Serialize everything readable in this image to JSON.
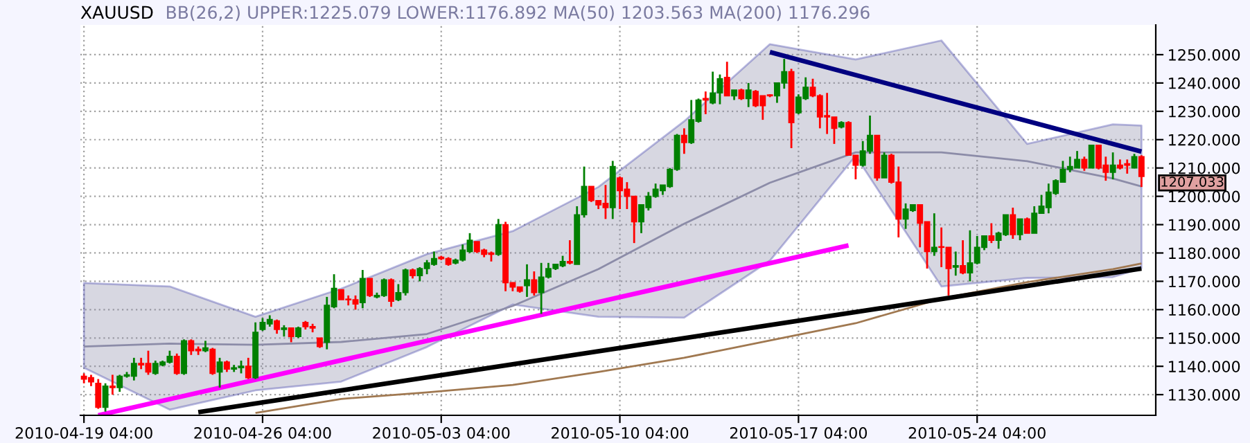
{
  "chart_data": {
    "type": "candlestick",
    "title": "XAUUSD",
    "subtitle": "BB(26,2) UPPER:1225.079 LOWER:1176.892 MA(50) 1203.563 MA(200) 1176.296",
    "categories": [
      "2010-04-19 04:00",
      null,
      null,
      null,
      null,
      null,
      null,
      null,
      null,
      null,
      null,
      null,
      null,
      null,
      null,
      null,
      null,
      null,
      null,
      null,
      null,
      null,
      null,
      null,
      null,
      "2010-04-26 04:00",
      null,
      null,
      null,
      null,
      null,
      null,
      null,
      null,
      null,
      null,
      null,
      null,
      null,
      null,
      null,
      null,
      null,
      null,
      null,
      null,
      null,
      null,
      null,
      null,
      "2010-05-03 04:00",
      null,
      null,
      null,
      null,
      null,
      null,
      null,
      null,
      null,
      null,
      null,
      null,
      null,
      null,
      null,
      null,
      null,
      null,
      null,
      null,
      null,
      null,
      null,
      null,
      "2010-05-10 04:00",
      null,
      null,
      null,
      null,
      null,
      null,
      null,
      null,
      null,
      null,
      null,
      null,
      null,
      null,
      null,
      null,
      null,
      null,
      null,
      null,
      null,
      null,
      null,
      null,
      "2010-05-17 04:00",
      null,
      null,
      null,
      null,
      null,
      null,
      null,
      null,
      null,
      null,
      null,
      null,
      null,
      null,
      null,
      null,
      null,
      null,
      null,
      null,
      null,
      null,
      null,
      null,
      "2010-05-24 04:00",
      null,
      null,
      null,
      null,
      null,
      null,
      null,
      null,
      null,
      null,
      null,
      null,
      null,
      null,
      null,
      null,
      null,
      null,
      null,
      null,
      null,
      null,
      null
    ],
    "ohlc": [
      [
        1136.5,
        1137.5,
        1134,
        1135.5
      ],
      [
        1136,
        1137,
        1133,
        1134.5
      ],
      [
        1134,
        1135.5,
        1125,
        1125.5
      ],
      [
        1125.5,
        1134,
        1124,
        1133
      ],
      [
        1133,
        1137,
        1130,
        1132.5
      ],
      [
        1132.5,
        1137,
        1131,
        1136.5
      ],
      [
        1136.5,
        1138,
        1136,
        1137
      ],
      [
        1136.5,
        1143,
        1135,
        1141
      ],
      [
        1141,
        1143,
        1139,
        1140.5
      ],
      [
        1141,
        1145.5,
        1137,
        1138
      ],
      [
        1137.5,
        1142,
        1137,
        1141
      ],
      [
        1140.5,
        1142,
        1140,
        1141.5
      ],
      [
        1141.5,
        1145.5,
        1141,
        1143.5
      ],
      [
        1143.5,
        1144.5,
        1137,
        1137.5
      ],
      [
        1137.5,
        1149.5,
        1137,
        1149
      ],
      [
        1149,
        1149.5,
        1144,
        1145.5
      ],
      [
        1146,
        1147,
        1144,
        1145.5
      ],
      [
        1145.5,
        1149,
        1145,
        1146.5
      ],
      [
        1146,
        1146.5,
        1137,
        1137.5
      ],
      [
        1138,
        1143,
        1132.5,
        1141.5
      ],
      [
        1141.5,
        1142,
        1138,
        1139
      ],
      [
        1139,
        1140.5,
        1138,
        1139.5
      ],
      [
        1139.5,
        1142,
        1137.5,
        1140
      ],
      [
        1140,
        1143,
        1135.5,
        1136
      ],
      [
        1136,
        1155.5,
        1135.5,
        1152
      ],
      [
        1153,
        1157,
        1152.5,
        1155.5
      ],
      [
        1155,
        1158,
        1154,
        1156.5
      ],
      [
        1156,
        1156.5,
        1151.5,
        1153
      ],
      [
        1153,
        1154.5,
        1150.5,
        1153.5
      ],
      [
        1153.5,
        1153.5,
        1148.5,
        1150.5
      ],
      [
        1150.5,
        1154,
        1150,
        1153.5
      ],
      [
        1155.5,
        1156,
        1153,
        1154
      ],
      [
        1154,
        1155,
        1152,
        1153.5
      ],
      [
        1150,
        1150,
        1146.5,
        1147
      ],
      [
        1148.5,
        1164.5,
        1146,
        1161.5
      ],
      [
        1161,
        1172.5,
        1160.5,
        1167.5
      ],
      [
        1167,
        1167,
        1163.5,
        1163.5
      ],
      [
        1163.7,
        1165,
        1161.5,
        1163.5
      ],
      [
        1163.5,
        1165,
        1160,
        1162
      ],
      [
        1162.5,
        1174,
        1160.5,
        1171
      ],
      [
        1171,
        1171,
        1164.5,
        1165
      ],
      [
        1164.5,
        1166,
        1164,
        1165
      ],
      [
        1165,
        1171,
        1164.5,
        1170.5
      ],
      [
        1170.5,
        1171,
        1161,
        1163
      ],
      [
        1163.5,
        1169,
        1163,
        1166
      ],
      [
        1166,
        1174.5,
        1165,
        1174
      ],
      [
        1174,
        1174.5,
        1171,
        1172
      ],
      [
        1172,
        1175,
        1170,
        1174.5
      ],
      [
        1174.5,
        1177.5,
        1172.5,
        1176.5
      ],
      [
        1176,
        1180.5,
        1175.5,
        1178
      ],
      [
        1178.5,
        1179,
        1177.5,
        1178
      ],
      [
        1178,
        1178.5,
        1175.5,
        1176
      ],
      [
        1176.5,
        1178,
        1176,
        1177.5
      ],
      [
        1177.5,
        1183,
        1177,
        1181
      ],
      [
        1180.5,
        1187,
        1180,
        1184.5
      ],
      [
        1184,
        1184,
        1180,
        1180.5
      ],
      [
        1181,
        1181.5,
        1178.5,
        1179.5
      ],
      [
        1180,
        1180.5,
        1177,
        1179.5
      ],
      [
        1179.5,
        1192,
        1179,
        1190
      ],
      [
        1190,
        1191,
        1166.5,
        1169.5
      ],
      [
        1169.5,
        1169.5,
        1166.5,
        1168
      ],
      [
        1168,
        1168,
        1166,
        1166.5
      ],
      [
        1168.5,
        1176,
        1164.5,
        1170.5
      ],
      [
        1170.5,
        1173.5,
        1165,
        1166
      ],
      [
        1166,
        1176.5,
        1158.5,
        1171.5
      ],
      [
        1171.5,
        1176.5,
        1171,
        1174.5
      ],
      [
        1174.5,
        1176,
        1174,
        1176
      ],
      [
        1175.5,
        1179,
        1175,
        1177
      ],
      [
        1177,
        1184.5,
        1176,
        1176.5
      ],
      [
        1176,
        1196.5,
        1176,
        1193.5
      ],
      [
        1193.5,
        1210.5,
        1192.5,
        1203.5
      ],
      [
        1203.5,
        1203.5,
        1198,
        1198.5
      ],
      [
        1198.5,
        1198.5,
        1195.5,
        1197
      ],
      [
        1197.5,
        1204,
        1192,
        1196
      ],
      [
        1196,
        1212.5,
        1192,
        1210.5
      ],
      [
        1206.5,
        1207,
        1195.5,
        1202
      ],
      [
        1202.5,
        1205,
        1195.5,
        1200
      ],
      [
        1200,
        1200,
        1183.5,
        1191
      ],
      [
        1191,
        1197,
        1187,
        1197
      ],
      [
        1196,
        1201.5,
        1195,
        1200
      ],
      [
        1200,
        1204.5,
        1199.5,
        1202.5
      ],
      [
        1202,
        1204,
        1200.5,
        1204
      ],
      [
        1203.5,
        1210,
        1203,
        1209.5
      ],
      [
        1209.5,
        1222,
        1209,
        1221.5
      ],
      [
        1221.5,
        1224,
        1215,
        1219
      ],
      [
        1219,
        1234,
        1218.5,
        1227
      ],
      [
        1226.5,
        1234.5,
        1226,
        1234
      ],
      [
        1234.5,
        1237,
        1229,
        1234
      ],
      [
        1233,
        1244,
        1232.5,
        1236.5
      ],
      [
        1236.5,
        1243,
        1232.5,
        1241.5
      ],
      [
        1242,
        1247.5,
        1235.5,
        1235.5
      ],
      [
        1235.5,
        1237.5,
        1234,
        1237.5
      ],
      [
        1237.5,
        1238,
        1234,
        1234.5
      ],
      [
        1234.5,
        1240,
        1231.5,
        1237.5
      ],
      [
        1237,
        1237.5,
        1231.5,
        1232
      ],
      [
        1235.5,
        1235.5,
        1227,
        1232
      ],
      [
        1235.8,
        1236,
        1235,
        1235.5
      ],
      [
        1235.5,
        1240,
        1233,
        1240
      ],
      [
        1240,
        1248.5,
        1238,
        1244
      ],
      [
        1244,
        1245,
        1217,
        1226
      ],
      [
        1229.5,
        1236,
        1229,
        1235
      ],
      [
        1234.5,
        1242,
        1234,
        1238.5
      ],
      [
        1238.5,
        1241.5,
        1235,
        1235.5
      ],
      [
        1235.5,
        1236,
        1224,
        1228
      ],
      [
        1228.5,
        1236.5,
        1222,
        1228
      ],
      [
        1228,
        1228,
        1218.5,
        1224
      ],
      [
        1224.5,
        1226.5,
        1224,
        1226
      ],
      [
        1226,
        1226.5,
        1214.5,
        1214.5
      ],
      [
        1214.5,
        1214.5,
        1206,
        1211
      ],
      [
        1211,
        1219.5,
        1210.5,
        1216
      ],
      [
        1216,
        1228.5,
        1215,
        1221.5
      ],
      [
        1221.5,
        1221.5,
        1205.5,
        1206.5
      ],
      [
        1206.5,
        1215.5,
        1206.5,
        1214.5
      ],
      [
        1214.5,
        1215,
        1204.5,
        1205
      ],
      [
        1205,
        1210.5,
        1185.5,
        1192
      ],
      [
        1192,
        1197.5,
        1188.5,
        1195.5
      ],
      [
        1195,
        1197,
        1194.5,
        1197
      ],
      [
        1197,
        1197,
        1182,
        1190.5
      ],
      [
        1191,
        1191,
        1174.5,
        1180.5
      ],
      [
        1180.5,
        1194,
        1179,
        1182
      ],
      [
        1182.2,
        1189,
        1175,
        1182
      ],
      [
        1182,
        1182,
        1165,
        1174.5
      ],
      [
        1175,
        1180.5,
        1172,
        1175.5
      ],
      [
        1175.5,
        1184.5,
        1172.5,
        1173
      ],
      [
        1173,
        1188,
        1170,
        1176.5
      ],
      [
        1176.5,
        1186,
        1176,
        1182
      ],
      [
        1182,
        1186,
        1181,
        1186
      ],
      [
        1186,
        1190.5,
        1183.5,
        1184.5
      ],
      [
        1184.5,
        1187.5,
        1181.5,
        1187
      ],
      [
        1186.5,
        1193.5,
        1186,
        1193.5
      ],
      [
        1193.5,
        1196,
        1185,
        1186.5
      ],
      [
        1186.5,
        1192,
        1184.5,
        1192
      ],
      [
        1192,
        1192.5,
        1187,
        1187
      ],
      [
        1187,
        1196.5,
        1187,
        1194
      ],
      [
        1194,
        1200.5,
        1194,
        1196.5
      ],
      [
        1196,
        1204.5,
        1194,
        1201.5
      ],
      [
        1201,
        1206,
        1200.5,
        1205.5
      ],
      [
        1205,
        1212.5,
        1205,
        1209.5
      ],
      [
        1209.5,
        1214,
        1208.5,
        1210.5
      ],
      [
        1210,
        1216,
        1210,
        1213
      ],
      [
        1213,
        1214,
        1209,
        1210
      ],
      [
        1210,
        1218,
        1210,
        1218
      ],
      [
        1218,
        1218,
        1209.5,
        1210
      ],
      [
        1211,
        1214,
        1205.5,
        1208.5
      ],
      [
        1208.5,
        1215.5,
        1206,
        1211
      ],
      [
        1211,
        1213,
        1209.5,
        1210
      ],
      [
        1211.5,
        1213,
        1208,
        1211
      ],
      [
        1210,
        1215,
        1210,
        1214
      ],
      [
        1214,
        1214.5,
        1203.3,
        1207.033
      ]
    ],
    "colors": [
      "#ff0000",
      "#ff0000",
      "#ff0000",
      "#008000",
      "#ff0000",
      "#008000",
      "#008000",
      "#008000",
      "#ff0000",
      "#ff0000",
      "#008000",
      "#008000",
      "#008000",
      "#ff0000",
      "#008000",
      "#ff0000",
      "#ff0000",
      "#008000",
      "#ff0000",
      "#008000",
      "#ff0000",
      "#008000",
      "#008000",
      "#ff0000",
      "#008000",
      "#008000",
      "#008000",
      "#ff0000",
      "#008000",
      "#ff0000",
      "#008000",
      "#ff0000",
      "#ff0000",
      "#ff0000",
      "#008000",
      "#008000",
      "#ff0000",
      "#ff0000",
      "#ff0000",
      "#008000",
      "#ff0000",
      "#008000",
      "#008000",
      "#ff0000",
      "#008000",
      "#008000",
      "#ff0000",
      "#008000",
      "#008000",
      "#008000",
      "#ff0000",
      "#ff0000",
      "#008000",
      "#008000",
      "#008000",
      "#ff0000",
      "#ff0000",
      "#ff0000",
      "#008000",
      "#ff0000",
      "#ff0000",
      "#ff0000",
      "#008000",
      "#ff0000",
      "#008000",
      "#008000",
      "#008000",
      "#008000",
      "#ff0000",
      "#008000",
      "#008000",
      "#ff0000",
      "#ff0000",
      "#ff0000",
      "#008000",
      "#ff0000",
      "#ff0000",
      "#ff0000",
      "#008000",
      "#008000",
      "#008000",
      "#008000",
      "#008000",
      "#008000",
      "#ff0000",
      "#008000",
      "#008000",
      "#ff0000",
      "#008000",
      "#008000",
      "#ff0000",
      "#008000",
      "#ff0000",
      "#008000",
      "#ff0000",
      "#ff0000",
      "#ff0000",
      "#008000",
      "#008000",
      "#ff0000",
      "#008000",
      "#008000",
      "#ff0000",
      "#ff0000",
      "#ff0000",
      "#ff0000",
      "#008000",
      "#ff0000",
      "#ff0000",
      "#008000",
      "#008000",
      "#ff0000",
      "#008000",
      "#ff0000",
      "#ff0000",
      "#008000",
      "#008000",
      "#ff0000",
      "#ff0000",
      "#008000",
      "#ff0000",
      "#ff0000",
      "#008000",
      "#ff0000",
      "#008000",
      "#008000",
      "#008000",
      "#ff0000",
      "#008000",
      "#008000",
      "#ff0000",
      "#008000",
      "#ff0000",
      "#008000",
      "#008000",
      "#008000",
      "#008000",
      "#008000",
      "#008000",
      "#008000",
      "#ff0000",
      "#008000",
      "#ff0000",
      "#ff0000",
      "#008000",
      "#ff0000",
      "#ff0000",
      "#008000",
      "#ff0000"
    ],
    "series": [
      {
        "type": "line",
        "color": "#8c8ca8",
        "values": [
          1147,
          null,
          null,
          null,
          null,
          null,
          null,
          null,
          null,
          null,
          null,
          null,
          1148,
          null,
          null,
          null,
          null,
          null,
          null,
          null,
          null,
          null,
          null,
          null,
          1147.6,
          null,
          null,
          null,
          null,
          null,
          null,
          null,
          null,
          null,
          null,
          null,
          1148.6,
          null,
          null,
          null,
          null,
          null,
          null,
          null,
          null,
          null,
          null,
          null,
          1151.4,
          null,
          null,
          null,
          null,
          null,
          null,
          null,
          null,
          null,
          null,
          null,
          1161.3,
          null,
          null,
          null,
          null,
          null,
          null,
          null,
          null,
          null,
          null,
          null,
          1174.3,
          null,
          null,
          null,
          null,
          null,
          null,
          null,
          null,
          null,
          null,
          null,
          1190.3,
          null,
          null,
          null,
          null,
          null,
          null,
          null,
          null,
          null,
          null,
          null,
          1204.8,
          null,
          null,
          null,
          null,
          null,
          null,
          null,
          null,
          null,
          null,
          null,
          1215.5,
          null,
          null,
          null,
          null,
          null,
          null,
          null,
          null,
          null,
          null,
          null,
          1215.5,
          null,
          null,
          null,
          null,
          null,
          null,
          null,
          null,
          null,
          null,
          null,
          1212.4,
          null,
          null,
          null,
          null,
          null,
          null,
          null,
          null,
          null,
          null,
          null,
          1206.3,
          null,
          null,
          null,
          1203.5
        ],
        "lower": [
          1139.5,
          null,
          null,
          null,
          null,
          null,
          null,
          null,
          null,
          null,
          null,
          null,
          1124.7,
          null,
          null,
          null,
          null,
          null,
          null,
          null,
          null,
          null,
          null,
          null,
          1131.5,
          null,
          null,
          null,
          null,
          null,
          null,
          null,
          null,
          null,
          null,
          null,
          1134.6,
          null,
          null,
          null,
          null,
          null,
          null,
          null,
          null,
          null,
          null,
          null,
          1146.8,
          null,
          null,
          null,
          null,
          null,
          null,
          null,
          null,
          null,
          null,
          null,
          1161.8,
          null,
          null,
          null,
          null,
          null,
          null,
          null,
          null,
          null,
          null,
          null,
          1157.5,
          null,
          null,
          null,
          null,
          null,
          null,
          null,
          null,
          null,
          null,
          null,
          1157.2,
          null,
          null,
          null,
          null,
          null,
          null,
          null,
          null,
          null,
          null,
          null,
          1177.3,
          null,
          null,
          null,
          null,
          null,
          null,
          null,
          null,
          null,
          null,
          null,
          1214.3,
          null,
          null,
          null,
          null,
          null,
          null,
          null,
          null,
          null,
          null,
          null,
          1168.2,
          null,
          null,
          null,
          null,
          null,
          null,
          null,
          null,
          null,
          null,
          null,
          1171.2,
          null,
          null,
          null,
          null,
          null,
          null,
          null,
          null,
          null,
          null,
          null,
          1171.5,
          null,
          null,
          null,
          1174.6
        ],
        "upper": [
          1169.4,
          null,
          null,
          null,
          null,
          null,
          null,
          null,
          null,
          null,
          null,
          null,
          1168.2,
          null,
          null,
          null,
          null,
          null,
          null,
          null,
          null,
          null,
          null,
          null,
          1157.5,
          null,
          null,
          null,
          null,
          null,
          null,
          null,
          null,
          null,
          null,
          null,
          1167.4,
          null,
          null,
          null,
          null,
          null,
          null,
          null,
          null,
          null,
          null,
          null,
          1179.6,
          null,
          null,
          null,
          null,
          null,
          null,
          null,
          null,
          null,
          null,
          null,
          1187.7,
          null,
          null,
          null,
          null,
          null,
          null,
          null,
          null,
          null,
          null,
          null,
          1203.3,
          null,
          null,
          null,
          null,
          null,
          null,
          null,
          null,
          null,
          null,
          null,
          1226.5,
          null,
          null,
          null,
          null,
          null,
          null,
          null,
          null,
          null,
          null,
          null,
          1253.7,
          null,
          null,
          null,
          null,
          null,
          null,
          null,
          null,
          null,
          null,
          null,
          1248.3,
          null,
          null,
          null,
          null,
          null,
          null,
          null,
          null,
          null,
          null,
          null,
          1255,
          null,
          null,
          null,
          null,
          null,
          null,
          null,
          null,
          null,
          null,
          null,
          1218.5,
          null,
          null,
          null,
          null,
          null,
          null,
          null,
          null,
          null,
          null,
          null,
          1225.4,
          null,
          null,
          null,
          1225
        ]
      },
      {
        "type": "line",
        "color": "#a07850",
        "values": [
          null,
          null,
          null,
          null,
          null,
          null,
          null,
          null,
          null,
          null,
          null,
          null,
          null,
          null,
          null,
          null,
          null,
          null,
          null,
          null,
          null,
          null,
          null,
          null,
          1123.5,
          null,
          null,
          null,
          null,
          null,
          null,
          null,
          null,
          null,
          null,
          null,
          1128.5,
          null,
          null,
          null,
          null,
          null,
          null,
          null,
          null,
          null,
          null,
          null,
          1130.8,
          null,
          null,
          null,
          null,
          null,
          null,
          null,
          null,
          null,
          null,
          null,
          1133.4,
          null,
          null,
          null,
          null,
          null,
          null,
          null,
          null,
          null,
          null,
          null,
          1138,
          null,
          null,
          null,
          null,
          null,
          null,
          null,
          null,
          null,
          null,
          null,
          1143,
          null,
          null,
          null,
          null,
          null,
          null,
          null,
          null,
          null,
          null,
          null,
          1149.1,
          null,
          null,
          null,
          null,
          null,
          null,
          null,
          null,
          null,
          null,
          null,
          1155.2,
          null,
          null,
          null,
          null,
          null,
          null,
          null,
          null,
          null,
          null,
          null,
          1163.9,
          null,
          null,
          null,
          null,
          null,
          null,
          null,
          null,
          null,
          null,
          null,
          1169.7,
          null,
          null,
          null,
          null,
          null,
          null,
          null,
          null,
          null,
          null,
          null,
          1174.3,
          null,
          null,
          null,
          1176.3
        ]
      },
      {
        "type": "line",
        "color": "#000000",
        "values": [
          null,
          null,
          null,
          null,
          null,
          null,
          null,
          null,
          null,
          null,
          null,
          null,
          null,
          null,
          null,
          null,
          1123.8,
          null,
          null,
          null,
          null,
          null,
          null,
          null,
          null,
          null,
          null,
          null,
          null,
          null,
          null,
          null,
          null,
          null,
          null,
          null,
          null,
          null,
          null,
          null,
          null,
          null,
          null,
          null,
          null,
          null,
          null,
          null,
          null,
          null,
          null,
          null,
          null,
          null,
          null,
          null,
          null,
          null,
          null,
          null,
          null,
          null,
          null,
          null,
          null,
          null,
          null,
          null,
          null,
          null,
          null,
          null,
          null,
          null,
          null,
          null,
          null,
          null,
          null,
          null,
          null,
          null,
          null,
          null,
          null,
          null,
          null,
          null,
          null,
          null,
          null,
          null,
          null,
          null,
          null,
          null,
          null,
          null,
          null,
          null,
          null,
          null,
          null,
          null,
          null,
          null,
          null,
          null,
          null,
          null,
          null,
          null,
          null,
          null,
          null,
          null,
          null,
          null,
          null,
          null,
          null,
          null,
          null,
          null,
          null,
          null,
          null,
          null,
          null,
          null,
          null,
          null,
          null,
          null,
          null,
          null,
          null,
          null,
          null,
          null,
          null,
          null,
          null,
          null,
          null,
          null,
          null,
          null,
          1174.5
        ]
      },
      {
        "type": "line",
        "color": "#ff00ff",
        "values": [
          null,
          null,
          1122.7,
          null,
          null,
          null,
          null,
          null,
          null,
          null,
          null,
          null,
          null,
          null,
          null,
          null,
          null,
          null,
          null,
          null,
          null,
          null,
          null,
          null,
          null,
          null,
          null,
          null,
          null,
          null,
          null,
          null,
          null,
          null,
          null,
          null,
          null,
          null,
          null,
          null,
          null,
          null,
          null,
          null,
          null,
          null,
          null,
          null,
          null,
          null,
          null,
          null,
          null,
          null,
          null,
          null,
          null,
          null,
          null,
          null,
          null,
          null,
          null,
          null,
          null,
          null,
          null,
          null,
          null,
          null,
          null,
          null,
          null,
          null,
          null,
          null,
          null,
          null,
          null,
          null,
          null,
          null,
          null,
          null,
          null,
          null,
          null,
          null,
          null,
          null,
          null,
          null,
          null,
          null,
          null,
          null,
          null,
          null,
          null,
          null,
          null,
          null,
          null,
          null,
          null,
          null,
          null,
          1182.7,
          null,
          null,
          null,
          null,
          null,
          null,
          null,
          null,
          null,
          null,
          null,
          null,
          null,
          null,
          null,
          null,
          null,
          null,
          null,
          null,
          null,
          null,
          null,
          null,
          null,
          null,
          null,
          null,
          null,
          null,
          null,
          null,
          null,
          null,
          null,
          null,
          null,
          null,
          null,
          null,
          null
        ]
      },
      {
        "type": "line",
        "color": "#000080",
        "values": [
          null,
          null,
          null,
          null,
          null,
          null,
          null,
          null,
          null,
          null,
          null,
          null,
          null,
          null,
          null,
          null,
          null,
          null,
          null,
          null,
          null,
          null,
          null,
          null,
          null,
          null,
          null,
          null,
          null,
          null,
          null,
          null,
          null,
          null,
          null,
          null,
          null,
          null,
          null,
          null,
          null,
          null,
          null,
          null,
          null,
          null,
          null,
          null,
          null,
          null,
          null,
          null,
          null,
          null,
          null,
          null,
          null,
          null,
          null,
          null,
          null,
          null,
          null,
          null,
          null,
          null,
          null,
          null,
          null,
          null,
          null,
          null,
          null,
          null,
          null,
          null,
          null,
          null,
          null,
          null,
          null,
          null,
          null,
          null,
          null,
          null,
          null,
          null,
          null,
          null,
          null,
          null,
          null,
          null,
          null,
          null,
          1250.9,
          null,
          null,
          null,
          null,
          null,
          null,
          null,
          null,
          null,
          null,
          null,
          null,
          null,
          null,
          null,
          null,
          null,
          null,
          null,
          null,
          null,
          null,
          null,
          null,
          null,
          null,
          null,
          null,
          null,
          null,
          null,
          null,
          null,
          null,
          null,
          null,
          null,
          null,
          null,
          null,
          null,
          null,
          null,
          null,
          null,
          null,
          null,
          null,
          null,
          null,
          null,
          1215.8
        ]
      }
    ],
    "ylim": [
      1122.7,
      1260.5
    ],
    "yticks": [
      {
        "value": 1130,
        "label": "1130.000"
      },
      {
        "value": 1140,
        "label": "1140.000"
      },
      {
        "value": 1150,
        "label": "1150.000"
      },
      {
        "value": 1160,
        "label": "1160.000"
      },
      {
        "value": 1170,
        "label": "1170.000"
      },
      {
        "value": 1180,
        "label": "1180.000"
      },
      {
        "value": 1190,
        "label": "1190.000"
      },
      {
        "value": 1200,
        "label": "1200.000"
      },
      {
        "value": 1210,
        "label": "1210.000"
      },
      {
        "value": 1220,
        "label": "1220.000"
      },
      {
        "value": 1230,
        "label": "1230.000"
      },
      {
        "value": 1240,
        "label": "1240.000"
      },
      {
        "value": 1250,
        "label": "1250.000"
      }
    ],
    "grid": true,
    "annotations": [
      "1207.033"
    ]
  }
}
